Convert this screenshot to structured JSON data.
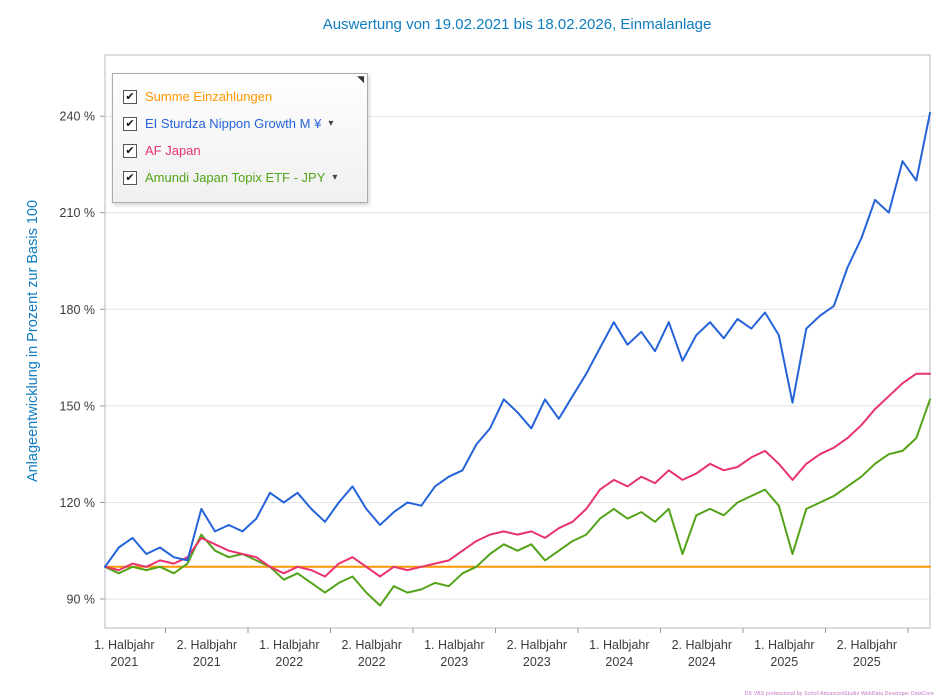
{
  "colors": {
    "title_blue": "#0F7CC0",
    "axis_text": "#3C3C3C",
    "grid": "#E4E4E4",
    "plot_border": "#B8B8B8",
    "tick_mark": "#9A9A9A"
  },
  "legend": {
    "collapse_icon": "◥",
    "items": [
      {
        "label": "Summe Einzahlungen",
        "color": "#FF9800",
        "checked": true,
        "dropdown": false
      },
      {
        "label": "EI Sturdza Nippon Growth M ¥",
        "color": "#2563D9",
        "checked": true,
        "dropdown": true
      },
      {
        "label": "AF Japan",
        "color": "#E8336E",
        "checked": true,
        "dropdown": false
      },
      {
        "label": "Amundi Japan Topix ETF - JPY",
        "color": "#53A318",
        "checked": true,
        "dropdown": true
      }
    ]
  },
  "watermark": "DX VBS professional by Scholl AdvancedStudio WebData Developer DataCore",
  "chart_data": {
    "type": "line",
    "title": "Auswertung von 19.02.2021 bis 18.02.2026, Einmalanlage",
    "xlabel": "",
    "ylabel": "Anlageentwicklung  in Prozent zur Basis 100",
    "x_unit": "months since 19.02.2021 (index 0 = 19.02.2021, index 60 = 18.02.2026)",
    "xlim": [
      0,
      60
    ],
    "ylim": [
      81,
      259
    ],
    "yticks": [
      90,
      120,
      150,
      180,
      210,
      240
    ],
    "ytick_suffix": " %",
    "grid": "horizontal",
    "legend_position": "top-left",
    "xtick_centers": [
      1.4,
      7.4,
      13.4,
      19.4,
      25.4,
      31.4,
      37.4,
      43.4,
      49.4,
      55.4
    ],
    "xtick_boundaries": [
      4.4,
      10.4,
      16.4,
      22.4,
      28.4,
      34.4,
      40.4,
      46.4,
      52.4,
      58.4
    ],
    "xtick_labels": [
      [
        "1. Halbjahr",
        "2021"
      ],
      [
        "2. Halbjahr",
        "2021"
      ],
      [
        "1. Halbjahr",
        "2022"
      ],
      [
        "2. Halbjahr",
        "2022"
      ],
      [
        "1. Halbjahr",
        "2023"
      ],
      [
        "2. Halbjahr",
        "2023"
      ],
      [
        "1. Halbjahr",
        "2024"
      ],
      [
        "2. Halbjahr",
        "2024"
      ],
      [
        "1. Halbjahr",
        "2025"
      ],
      [
        "2. Halbjahr",
        "2025"
      ]
    ],
    "series": [
      {
        "id": "summe-einzahlungen",
        "name": "Summe Einzahlungen",
        "color": "#FF9800",
        "x": [
          0,
          60
        ],
        "values": [
          100,
          100
        ]
      },
      {
        "id": "amundi-japan-topix-etf",
        "name": "Amundi Japan Topix ETF - JPY",
        "color": "#53A318",
        "values": [
          100,
          98,
          100,
          99,
          100,
          98,
          101,
          110,
          105,
          103,
          104,
          102,
          100,
          96,
          98,
          95,
          92,
          95,
          97,
          92,
          88,
          94,
          92,
          93,
          95,
          94,
          98,
          100,
          104,
          107,
          105,
          107,
          102,
          105,
          108,
          110,
          115,
          118,
          115,
          117,
          114,
          118,
          104,
          116,
          118,
          116,
          120,
          122,
          124,
          119,
          104,
          118,
          120,
          122,
          125,
          128,
          132,
          135,
          136,
          140,
          152
        ]
      },
      {
        "id": "af-japan",
        "name": "AF Japan",
        "color": "#E8336E",
        "values": [
          100,
          99,
          101,
          100,
          102,
          101,
          103,
          109,
          107,
          105,
          104,
          103,
          100,
          98,
          100,
          99,
          97,
          101,
          103,
          100,
          97,
          100,
          99,
          100,
          101,
          102,
          105,
          108,
          110,
          111,
          110,
          111,
          109,
          112,
          114,
          118,
          124,
          127,
          125,
          128,
          126,
          130,
          127,
          129,
          132,
          130,
          131,
          134,
          136,
          132,
          127,
          132,
          135,
          137,
          140,
          144,
          149,
          153,
          157,
          160,
          160
        ]
      },
      {
        "id": "ei-sturdza-nippon-growth",
        "name": "EI Sturdza Nippon Growth M ¥",
        "color": "#2563D9",
        "values": [
          100,
          106,
          109,
          104,
          106,
          103,
          102,
          118,
          111,
          113,
          111,
          115,
          123,
          120,
          123,
          118,
          114,
          120,
          125,
          118,
          113,
          117,
          120,
          119,
          125,
          128,
          130,
          138,
          143,
          152,
          148,
          143,
          152,
          146,
          153,
          160,
          168,
          176,
          169,
          173,
          167,
          176,
          164,
          172,
          176,
          171,
          177,
          174,
          179,
          172,
          151,
          174,
          178,
          181,
          193,
          202,
          214,
          210,
          226,
          220,
          241
        ]
      }
    ]
  }
}
